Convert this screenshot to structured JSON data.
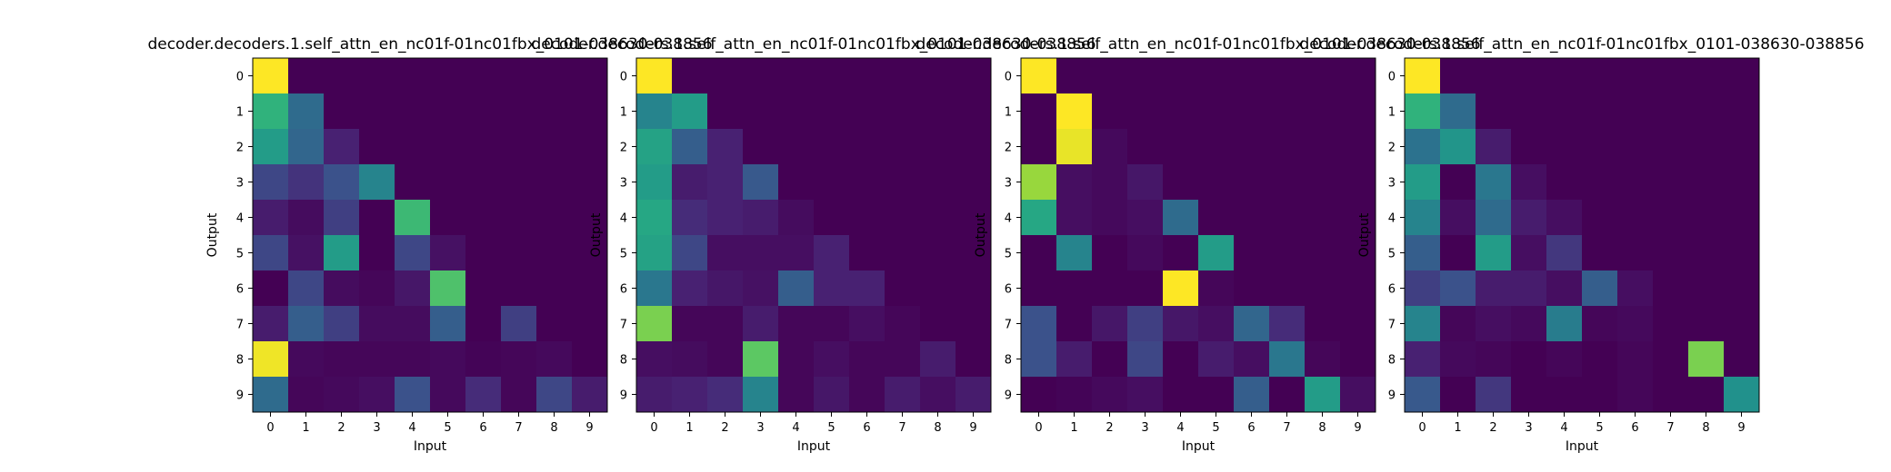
{
  "chart_data": [
    {
      "type": "heatmap",
      "title": "decoder.decoders.1.self_attn_en_nc01f-01nc01fbx_0101-038630-038856",
      "xlabel": "Input",
      "ylabel": "Output",
      "x_ticks": [
        "0",
        "1",
        "2",
        "3",
        "4",
        "5",
        "6",
        "7",
        "8",
        "9"
      ],
      "y_ticks": [
        "0",
        "1",
        "2",
        "3",
        "4",
        "5",
        "6",
        "7",
        "8",
        "9"
      ],
      "colormap": "viridis",
      "value_range": [
        0,
        1
      ],
      "values": [
        [
          1.0,
          0.0,
          0.0,
          0.0,
          0.0,
          0.0,
          0.0,
          0.0,
          0.0,
          0.0
        ],
        [
          0.65,
          0.35,
          0.0,
          0.0,
          0.0,
          0.0,
          0.0,
          0.0,
          0.0,
          0.0
        ],
        [
          0.55,
          0.33,
          0.12,
          0.0,
          0.0,
          0.0,
          0.0,
          0.0,
          0.0,
          0.0
        ],
        [
          0.22,
          0.17,
          0.25,
          0.45,
          0.0,
          0.0,
          0.0,
          0.0,
          0.0,
          0.0
        ],
        [
          0.1,
          0.04,
          0.2,
          0.0,
          0.68,
          0.0,
          0.0,
          0.0,
          0.0,
          0.0
        ],
        [
          0.22,
          0.06,
          0.55,
          0.0,
          0.22,
          0.06,
          0.0,
          0.0,
          0.0,
          0.0
        ],
        [
          0.0,
          0.22,
          0.04,
          0.02,
          0.08,
          0.72,
          0.0,
          0.0,
          0.0,
          0.0
        ],
        [
          0.1,
          0.3,
          0.2,
          0.04,
          0.04,
          0.3,
          0.0,
          0.2,
          0.0,
          0.0
        ],
        [
          0.98,
          0.03,
          0.02,
          0.02,
          0.02,
          0.03,
          0.01,
          0.02,
          0.03,
          0.0
        ],
        [
          0.35,
          0.02,
          0.03,
          0.05,
          0.25,
          0.03,
          0.15,
          0.02,
          0.22,
          0.1
        ]
      ]
    },
    {
      "type": "heatmap",
      "title": "decoder.decoders.1.self_attn_en_nc01f-01nc01fbx_0101-038630-038856",
      "xlabel": "Input",
      "ylabel": "Output",
      "x_ticks": [
        "0",
        "1",
        "2",
        "3",
        "4",
        "5",
        "6",
        "7",
        "8",
        "9"
      ],
      "y_ticks": [
        "0",
        "1",
        "2",
        "3",
        "4",
        "5",
        "6",
        "7",
        "8",
        "9"
      ],
      "colormap": "viridis",
      "value_range": [
        0,
        1
      ],
      "values": [
        [
          1.0,
          0.0,
          0.0,
          0.0,
          0.0,
          0.0,
          0.0,
          0.0,
          0.0,
          0.0
        ],
        [
          0.45,
          0.55,
          0.0,
          0.0,
          0.0,
          0.0,
          0.0,
          0.0,
          0.0,
          0.0
        ],
        [
          0.58,
          0.3,
          0.12,
          0.0,
          0.0,
          0.0,
          0.0,
          0.0,
          0.0,
          0.0
        ],
        [
          0.55,
          0.1,
          0.12,
          0.28,
          0.0,
          0.0,
          0.0,
          0.0,
          0.0,
          0.0
        ],
        [
          0.6,
          0.15,
          0.12,
          0.1,
          0.04,
          0.0,
          0.0,
          0.0,
          0.0,
          0.0
        ],
        [
          0.58,
          0.22,
          0.05,
          0.05,
          0.05,
          0.12,
          0.0,
          0.0,
          0.0,
          0.0
        ],
        [
          0.4,
          0.12,
          0.08,
          0.06,
          0.3,
          0.12,
          0.12,
          0.0,
          0.0,
          0.0
        ],
        [
          0.8,
          0.02,
          0.02,
          0.1,
          0.02,
          0.02,
          0.05,
          0.02,
          0.0,
          0.0
        ],
        [
          0.05,
          0.04,
          0.02,
          0.75,
          0.02,
          0.05,
          0.02,
          0.02,
          0.1,
          0.0
        ],
        [
          0.1,
          0.12,
          0.15,
          0.45,
          0.02,
          0.08,
          0.02,
          0.1,
          0.05,
          0.1
        ]
      ]
    },
    {
      "type": "heatmap",
      "title": "decoder.decoders.1.self_attn_en_nc01f-01nc01fbx_0101-038630-038856",
      "xlabel": "Input",
      "ylabel": "Output",
      "x_ticks": [
        "0",
        "1",
        "2",
        "3",
        "4",
        "5",
        "6",
        "7",
        "8",
        "9"
      ],
      "y_ticks": [
        "0",
        "1",
        "2",
        "3",
        "4",
        "5",
        "6",
        "7",
        "8",
        "9"
      ],
      "colormap": "viridis",
      "value_range": [
        0,
        1
      ],
      "values": [
        [
          1.0,
          0.0,
          0.0,
          0.0,
          0.0,
          0.0,
          0.0,
          0.0,
          0.0,
          0.0
        ],
        [
          0.0,
          1.0,
          0.0,
          0.0,
          0.0,
          0.0,
          0.0,
          0.0,
          0.0,
          0.0
        ],
        [
          0.0,
          0.97,
          0.03,
          0.0,
          0.0,
          0.0,
          0.0,
          0.0,
          0.0,
          0.0
        ],
        [
          0.85,
          0.05,
          0.03,
          0.08,
          0.0,
          0.0,
          0.0,
          0.0,
          0.0,
          0.0
        ],
        [
          0.6,
          0.05,
          0.03,
          0.05,
          0.35,
          0.0,
          0.0,
          0.0,
          0.0,
          0.0
        ],
        [
          0.0,
          0.45,
          0.0,
          0.03,
          0.0,
          0.55,
          0.0,
          0.0,
          0.0,
          0.0
        ],
        [
          0.0,
          0.0,
          0.0,
          0.0,
          1.0,
          0.02,
          0.0,
          0.0,
          0.0,
          0.0
        ],
        [
          0.25,
          0.0,
          0.08,
          0.2,
          0.08,
          0.05,
          0.33,
          0.15,
          0.0,
          0.0
        ],
        [
          0.25,
          0.1,
          0.0,
          0.22,
          0.0,
          0.1,
          0.05,
          0.4,
          0.02,
          0.0
        ],
        [
          0.0,
          0.01,
          0.03,
          0.05,
          0.0,
          0.0,
          0.3,
          0.0,
          0.55,
          0.05
        ]
      ]
    },
    {
      "type": "heatmap",
      "title": "decoder.decoders.1.self_attn_en_nc01f-01nc01fbx_0101-038630-038856",
      "xlabel": "Input",
      "ylabel": "Output",
      "x_ticks": [
        "0",
        "1",
        "2",
        "3",
        "4",
        "5",
        "6",
        "7",
        "8",
        "9"
      ],
      "y_ticks": [
        "0",
        "1",
        "2",
        "3",
        "4",
        "5",
        "6",
        "7",
        "8",
        "9"
      ],
      "colormap": "viridis",
      "value_range": [
        0,
        1
      ],
      "values": [
        [
          1.0,
          0.0,
          0.0,
          0.0,
          0.0,
          0.0,
          0.0,
          0.0,
          0.0,
          0.0
        ],
        [
          0.65,
          0.35,
          0.0,
          0.0,
          0.0,
          0.0,
          0.0,
          0.0,
          0.0,
          0.0
        ],
        [
          0.38,
          0.52,
          0.1,
          0.0,
          0.0,
          0.0,
          0.0,
          0.0,
          0.0,
          0.0
        ],
        [
          0.55,
          0.0,
          0.4,
          0.05,
          0.0,
          0.0,
          0.0,
          0.0,
          0.0,
          0.0
        ],
        [
          0.45,
          0.05,
          0.35,
          0.1,
          0.05,
          0.0,
          0.0,
          0.0,
          0.0,
          0.0
        ],
        [
          0.3,
          0.0,
          0.55,
          0.05,
          0.18,
          0.0,
          0.0,
          0.0,
          0.0,
          0.0
        ],
        [
          0.2,
          0.25,
          0.1,
          0.1,
          0.05,
          0.3,
          0.05,
          0.0,
          0.0,
          0.0
        ],
        [
          0.45,
          0.02,
          0.05,
          0.03,
          0.42,
          0.02,
          0.03,
          0.0,
          0.0,
          0.0
        ],
        [
          0.12,
          0.03,
          0.02,
          0.0,
          0.02,
          0.0,
          0.02,
          0.0,
          0.8,
          0.0
        ],
        [
          0.28,
          0.0,
          0.18,
          0.0,
          0.0,
          0.0,
          0.02,
          0.0,
          0.0,
          0.5
        ]
      ]
    }
  ]
}
